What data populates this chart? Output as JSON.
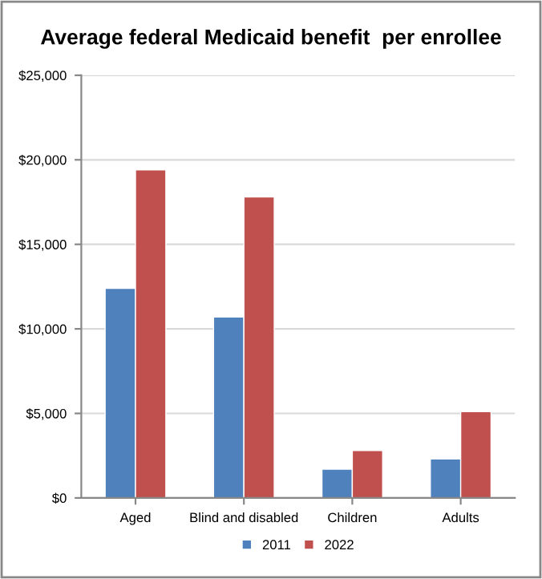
{
  "chart_data": {
    "type": "bar",
    "title": "Average federal Medicaid benefit  per enrollee",
    "categories": [
      "Aged",
      "Blind and disabled",
      "Children",
      "Adults"
    ],
    "series": [
      {
        "name": "2011",
        "color": "#4f81bd",
        "values": [
          12400,
          10700,
          1700,
          2300
        ]
      },
      {
        "name": "2022",
        "color": "#c0504d",
        "values": [
          19400,
          17800,
          2800,
          5100
        ]
      }
    ],
    "ylim": [
      0,
      25000
    ],
    "yticks": [
      {
        "value": 0,
        "label": "$0"
      },
      {
        "value": 5000,
        "label": "$5,000"
      },
      {
        "value": 10000,
        "label": "$10,000"
      },
      {
        "value": 15000,
        "label": "$15,000"
      },
      {
        "value": 20000,
        "label": "$20,000"
      },
      {
        "value": 25000,
        "label": "$25,000"
      }
    ],
    "grid": "y",
    "legend": "bottom"
  }
}
